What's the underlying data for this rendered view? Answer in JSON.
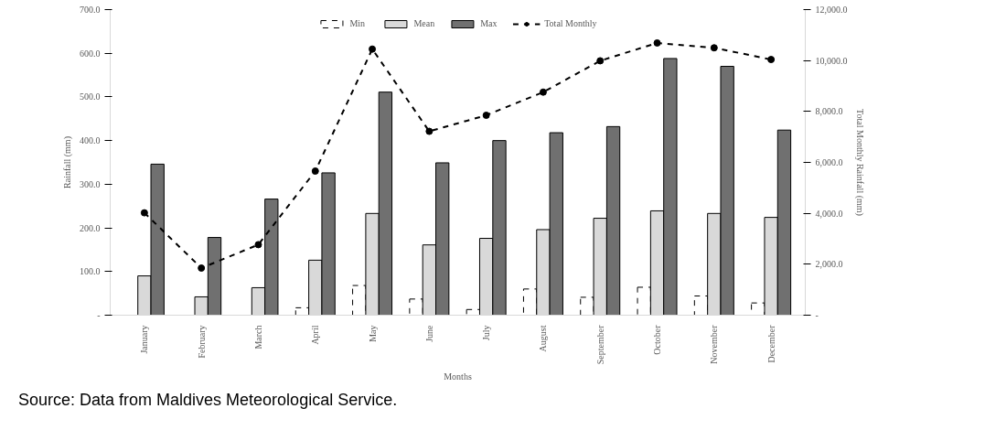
{
  "chart_data": {
    "type": "bar",
    "xlabel": "Months",
    "ylabel": "Rainfall (mm)",
    "y2label": "Total Monthly Rainfall (mm)",
    "categories": [
      "January",
      "February",
      "March",
      "April",
      "May",
      "June",
      "July",
      "August",
      "September",
      "October",
      "November",
      "December"
    ],
    "series": [
      {
        "name": "Min",
        "color": "#ffffff",
        "line_style": "dashed",
        "values": [
          0,
          0,
          0,
          17,
          68,
          37,
          13,
          60,
          41,
          64,
          44,
          28
        ]
      },
      {
        "name": "Mean",
        "color": "#d9d9d9",
        "values": [
          90,
          42,
          63,
          126,
          233,
          161,
          176,
          196,
          222,
          239,
          233,
          224
        ]
      },
      {
        "name": "Max",
        "color": "#707070",
        "values": [
          346,
          178,
          266,
          326,
          511,
          349,
          400,
          418,
          432,
          588,
          570,
          424
        ]
      },
      {
        "name": "Total Monthly",
        "type": "line",
        "axis": "y2",
        "color": "#000000",
        "marker": "circle",
        "line_style": "dashed",
        "values": [
          4020,
          1850,
          2770,
          5660,
          10450,
          7220,
          7850,
          8760,
          9990,
          10690,
          10500,
          10040
        ]
      }
    ],
    "ylim": [
      0,
      700
    ],
    "yticks": [
      {
        "value": 0,
        "label": "-"
      },
      {
        "value": 100,
        "label": "100.0"
      },
      {
        "value": 200,
        "label": "200.0"
      },
      {
        "value": 300,
        "label": "300.0"
      },
      {
        "value": 400,
        "label": "400.0"
      },
      {
        "value": 500,
        "label": "500.0"
      },
      {
        "value": 600,
        "label": "600.0"
      },
      {
        "value": 700,
        "label": "700.0"
      }
    ],
    "y2lim": [
      0,
      12000
    ],
    "y2ticks": [
      {
        "value": 0,
        "label": "-"
      },
      {
        "value": 2000,
        "label": "2,000.0"
      },
      {
        "value": 4000,
        "label": "4,000.0"
      },
      {
        "value": 6000,
        "label": "6,000.0"
      },
      {
        "value": 8000,
        "label": "8,000.0"
      },
      {
        "value": 10000,
        "label": "10,000.0"
      },
      {
        "value": 12000,
        "label": "12,000.0"
      }
    ],
    "grid": false,
    "legend": "top",
    "annotations": [
      "Source: Data from Maldives Meteorological Service."
    ]
  }
}
